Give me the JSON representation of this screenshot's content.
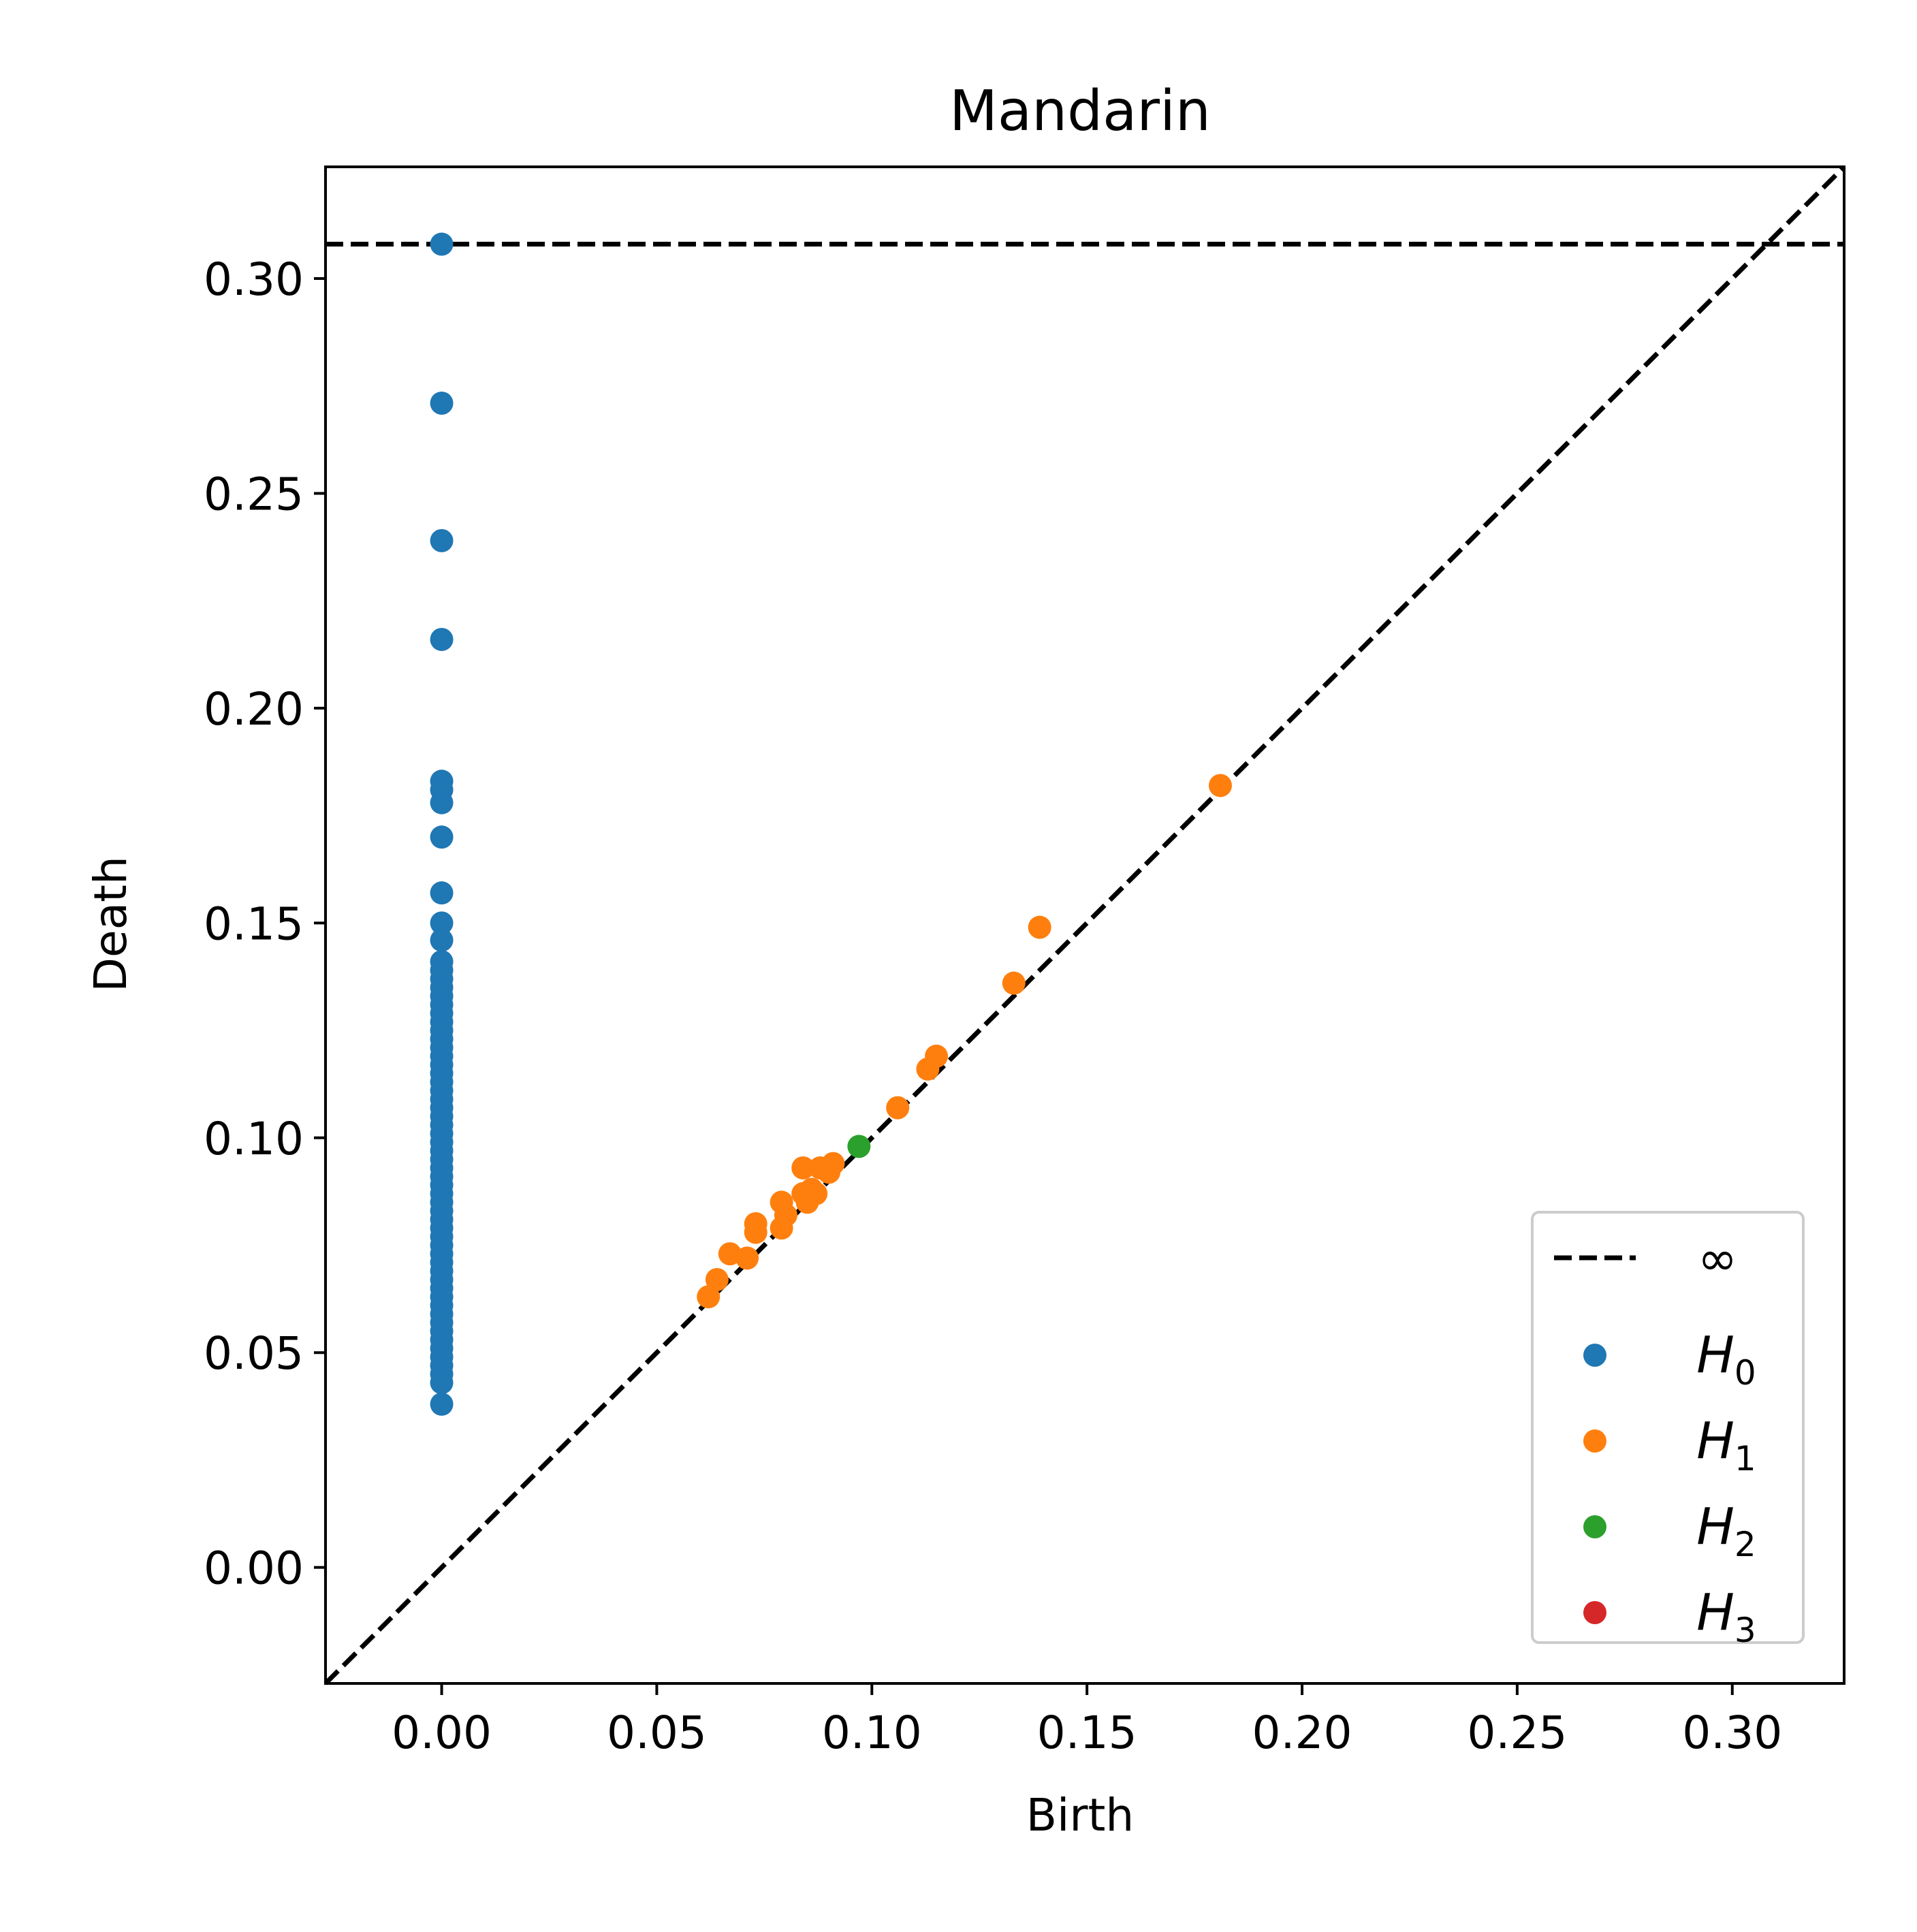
{
  "chart_data": {
    "type": "scatter",
    "title": "Mandarin",
    "xlabel": "Birth",
    "ylabel": "Death",
    "xlim": [
      -0.027,
      0.326
    ],
    "ylim": [
      -0.027,
      0.326
    ],
    "xticks": [
      0.0,
      0.05,
      0.1,
      0.15,
      0.2,
      0.25,
      0.3
    ],
    "xtick_labels": [
      "0.00",
      "0.05",
      "0.10",
      "0.15",
      "0.20",
      "0.25",
      "0.30"
    ],
    "yticks": [
      0.0,
      0.05,
      0.1,
      0.15,
      0.2,
      0.25,
      0.3
    ],
    "ytick_labels": [
      "0.00",
      "0.05",
      "0.10",
      "0.15",
      "0.20",
      "0.25",
      "0.30"
    ],
    "grid": false,
    "legend_position": "bottom-right",
    "diagonal": {
      "from": [
        -0.027,
        -0.027
      ],
      "to": [
        0.326,
        0.326
      ],
      "style": "dashed",
      "color": "#000000"
    },
    "infinity_line": {
      "y": 0.308,
      "label": "∞",
      "style": "dashed",
      "color": "#000000"
    },
    "series": [
      {
        "name": "H",
        "subscript": "0",
        "color": "#1f77b4",
        "points": [
          [
            0.0,
            0.308
          ],
          [
            0.0,
            0.271
          ],
          [
            0.0,
            0.239
          ],
          [
            0.0,
            0.216
          ],
          [
            0.0,
            0.183
          ],
          [
            0.0,
            0.181
          ],
          [
            0.0,
            0.178
          ],
          [
            0.0,
            0.17
          ],
          [
            0.0,
            0.157
          ],
          [
            0.0,
            0.15
          ],
          [
            0.0,
            0.146
          ],
          [
            0.0,
            0.141
          ],
          [
            0.0,
            0.139
          ],
          [
            0.0,
            0.137
          ],
          [
            0.0,
            0.135
          ],
          [
            0.0,
            0.133
          ],
          [
            0.0,
            0.131
          ],
          [
            0.0,
            0.129
          ],
          [
            0.0,
            0.127
          ],
          [
            0.0,
            0.125
          ],
          [
            0.0,
            0.123
          ],
          [
            0.0,
            0.121
          ],
          [
            0.0,
            0.119
          ],
          [
            0.0,
            0.117
          ],
          [
            0.0,
            0.115
          ],
          [
            0.0,
            0.113
          ],
          [
            0.0,
            0.111
          ],
          [
            0.0,
            0.109
          ],
          [
            0.0,
            0.107
          ],
          [
            0.0,
            0.105
          ],
          [
            0.0,
            0.103
          ],
          [
            0.0,
            0.101
          ],
          [
            0.0,
            0.099
          ],
          [
            0.0,
            0.097
          ],
          [
            0.0,
            0.095
          ],
          [
            0.0,
            0.093
          ],
          [
            0.0,
            0.091
          ],
          [
            0.0,
            0.089
          ],
          [
            0.0,
            0.087
          ],
          [
            0.0,
            0.085
          ],
          [
            0.0,
            0.083
          ],
          [
            0.0,
            0.081
          ],
          [
            0.0,
            0.079
          ],
          [
            0.0,
            0.077
          ],
          [
            0.0,
            0.075
          ],
          [
            0.0,
            0.073
          ],
          [
            0.0,
            0.071
          ],
          [
            0.0,
            0.069
          ],
          [
            0.0,
            0.067
          ],
          [
            0.0,
            0.065
          ],
          [
            0.0,
            0.063
          ],
          [
            0.0,
            0.061
          ],
          [
            0.0,
            0.059
          ],
          [
            0.0,
            0.057
          ],
          [
            0.0,
            0.055
          ],
          [
            0.0,
            0.053
          ],
          [
            0.0,
            0.051
          ],
          [
            0.0,
            0.049
          ],
          [
            0.0,
            0.047
          ],
          [
            0.0,
            0.045
          ],
          [
            0.0,
            0.043
          ],
          [
            0.0,
            0.038
          ]
        ]
      },
      {
        "name": "H",
        "subscript": "1",
        "color": "#ff7f0e",
        "points": [
          [
            0.181,
            0.182
          ],
          [
            0.139,
            0.149
          ],
          [
            0.133,
            0.136
          ],
          [
            0.115,
            0.119
          ],
          [
            0.113,
            0.116
          ],
          [
            0.106,
            0.107
          ],
          [
            0.091,
            0.094
          ],
          [
            0.088,
            0.093
          ],
          [
            0.084,
            0.093
          ],
          [
            0.09,
            0.092
          ],
          [
            0.086,
            0.088
          ],
          [
            0.084,
            0.087
          ],
          [
            0.087,
            0.087
          ],
          [
            0.085,
            0.085
          ],
          [
            0.079,
            0.085
          ],
          [
            0.08,
            0.082
          ],
          [
            0.079,
            0.079
          ],
          [
            0.073,
            0.08
          ],
          [
            0.073,
            0.078
          ],
          [
            0.067,
            0.073
          ],
          [
            0.071,
            0.072
          ],
          [
            0.064,
            0.067
          ],
          [
            0.062,
            0.063
          ]
        ]
      },
      {
        "name": "H",
        "subscript": "2",
        "color": "#2ca02c",
        "points": [
          [
            0.097,
            0.098
          ]
        ]
      },
      {
        "name": "H",
        "subscript": "3",
        "color": "#d62728",
        "points": []
      }
    ]
  }
}
